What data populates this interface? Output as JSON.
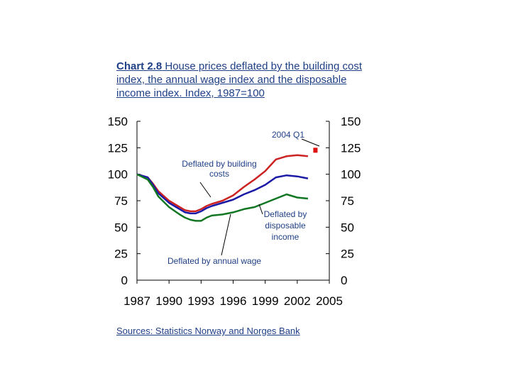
{
  "chart_data": {
    "type": "line",
    "title_bold": "Chart 2.8",
    "title_rest": " House prices deflated by the building cost index, the annual wage index and the disposable income index. Index, 1987=100",
    "source": "Sources: Statistics Norway and Norges Bank",
    "x_ticks": [
      "1987",
      "1990",
      "1993",
      "1996",
      "1999",
      "2002",
      "2005"
    ],
    "y_ticks_left": [
      "150",
      "125",
      "100",
      "75",
      "50",
      "25",
      "0"
    ],
    "y_ticks_right": [
      "150",
      "125",
      "100",
      "75",
      "50",
      "25",
      "0"
    ],
    "xlim": [
      1987,
      2005
    ],
    "ylim": [
      0,
      150
    ],
    "annotations": [
      {
        "id": "building",
        "lines": [
          "Deflated by building",
          "costs"
        ]
      },
      {
        "id": "income",
        "lines": [
          "Deflated by",
          "disposable",
          "income"
        ]
      },
      {
        "id": "wage",
        "lines": [
          "Deflated by annual wage"
        ]
      },
      {
        "id": "q1",
        "lines": [
          "2004 Q1"
        ]
      }
    ],
    "series": [
      {
        "color": "#cc2222",
        "x": [
          1987,
          1988,
          1988.5,
          1989,
          1990,
          1991,
          1991.5,
          1992,
          1992.5,
          1993,
          1993.5,
          1994,
          1995,
          1996,
          1997,
          1998,
          1999,
          2000,
          2001,
          2002,
          2003
        ],
        "values": [
          100,
          97,
          91,
          84,
          75,
          69,
          66,
          65,
          65,
          67,
          70,
          72,
          75,
          80,
          88,
          95,
          103,
          114,
          117,
          118,
          117
        ]
      },
      {
        "color": "#1a1aa6",
        "x": [
          1987,
          1988,
          1988.5,
          1989,
          1990,
          1991,
          1991.5,
          1992,
          1992.5,
          1993,
          1993.5,
          1994,
          1995,
          1996,
          1997,
          1998,
          1999,
          2000,
          2001,
          2002,
          2003
        ],
        "values": [
          100,
          97,
          90,
          82,
          73,
          67,
          64,
          63,
          63,
          65,
          68,
          70,
          73,
          76,
          81,
          85,
          90,
          97,
          99,
          98,
          96
        ]
      },
      {
        "color": "#117722",
        "x": [
          1987,
          1988,
          1988.5,
          1989,
          1990,
          1991,
          1991.5,
          1992,
          1992.5,
          1993,
          1993.5,
          1994,
          1995,
          1996,
          1997,
          1998,
          1999,
          2000,
          2001,
          2002,
          2003
        ],
        "values": [
          100,
          95,
          88,
          79,
          69,
          62,
          59,
          57,
          56,
          56,
          59,
          61,
          62,
          64,
          67,
          69,
          73,
          77,
          81,
          78,
          77
        ]
      }
    ],
    "extra_points": [
      {
        "color": "#dd1111",
        "x": 2003.7,
        "y": 123
      }
    ]
  }
}
